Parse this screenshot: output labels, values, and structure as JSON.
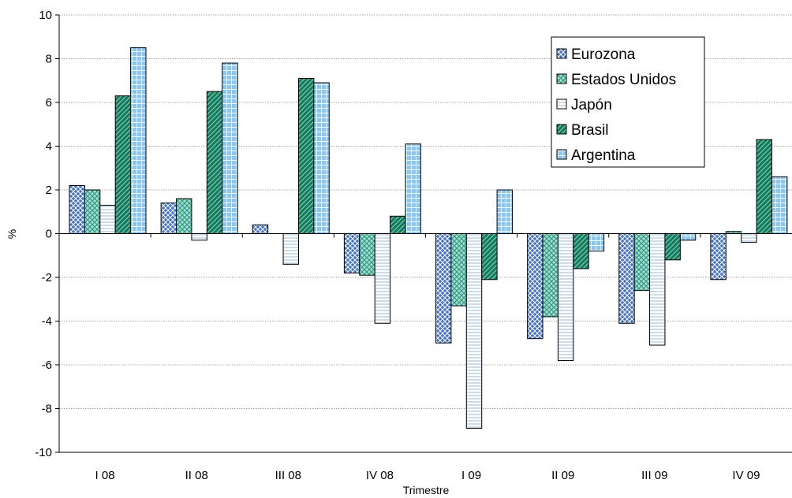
{
  "chart_data": {
    "type": "bar",
    "xlabel": "Trimestre",
    "ylabel": "%",
    "ylim": [
      -10,
      10
    ],
    "ytick_step": 2,
    "grid": true,
    "legend_position": "top-right",
    "categories": [
      "I 08",
      "II 08",
      "III 08",
      "IV 08",
      "I 09",
      "II 09",
      "III 09",
      "IV 09"
    ],
    "series": [
      {
        "name": "Eurozona",
        "pattern": "diamond-cross",
        "color": "#3f6fd1",
        "values": [
          2.2,
          1.4,
          0.4,
          -1.8,
          -5.0,
          -4.8,
          -4.1,
          -2.1
        ]
      },
      {
        "name": "Estados Unidos",
        "pattern": "diamond-cross",
        "color": "#2e9c84",
        "values": [
          2.0,
          1.6,
          0.0,
          -1.9,
          -3.3,
          -3.8,
          -2.6,
          0.1
        ]
      },
      {
        "name": "Japón",
        "pattern": "horizontal-lines",
        "color": "#7fa6d9",
        "values": [
          1.3,
          -0.3,
          -1.4,
          -4.1,
          -8.9,
          -5.8,
          -5.1,
          -0.4
        ]
      },
      {
        "name": "Brasil",
        "pattern": "diagonal-lines",
        "color": "#127a5c",
        "values": [
          6.3,
          6.5,
          7.1,
          0.8,
          -2.1,
          -1.6,
          -1.2,
          4.3
        ]
      },
      {
        "name": "Argentina",
        "pattern": "grid",
        "color": "#8cc4f4",
        "values": [
          8.5,
          7.8,
          6.9,
          4.1,
          2.0,
          -0.8,
          -0.3,
          2.6
        ]
      }
    ]
  }
}
